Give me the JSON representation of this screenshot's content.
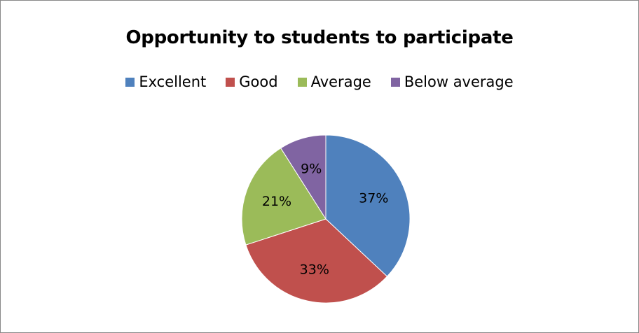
{
  "chart_data": {
    "type": "pie",
    "title": "Opportunity to students to participate",
    "legend_position": "top",
    "categories": [
      "Excellent",
      "Good",
      "Average",
      "Below average"
    ],
    "values": [
      37,
      33,
      21,
      9
    ],
    "labels": [
      "37%",
      "33%",
      "21%",
      "9%"
    ],
    "colors": [
      "#4F81BD",
      "#C0504D",
      "#9BBB59",
      "#8064A2"
    ],
    "start_angle_deg": 0,
    "direction": "clockwise"
  }
}
